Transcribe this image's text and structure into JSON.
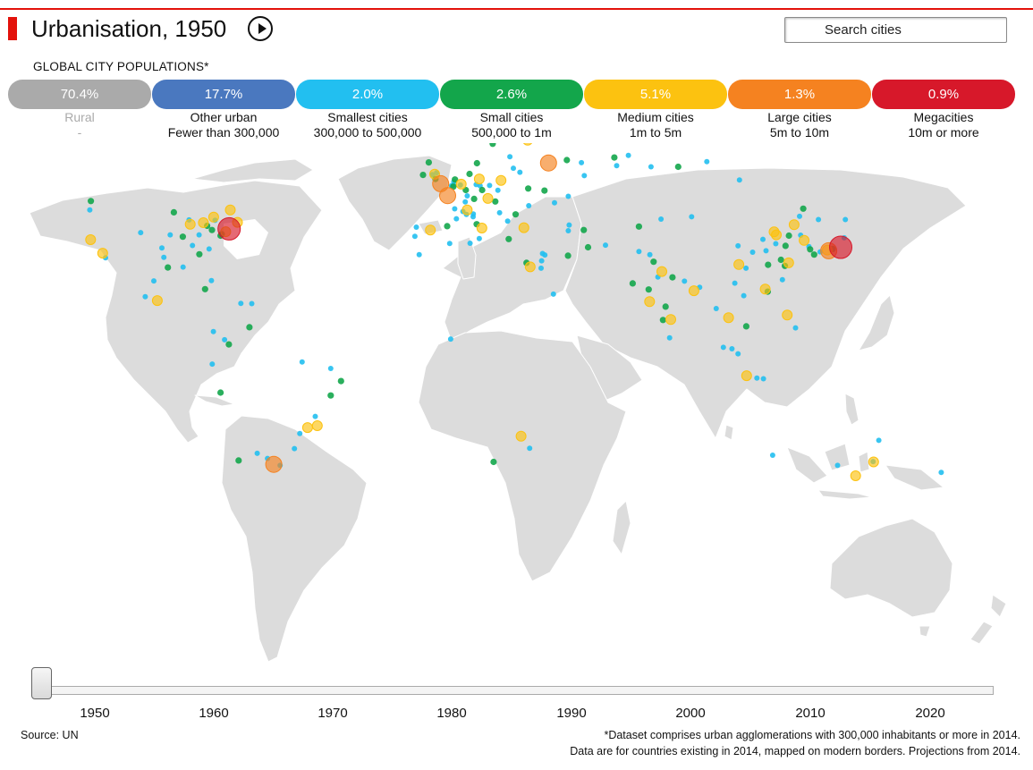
{
  "header": {
    "title": "Urbanisation, 1950",
    "search_placeholder": "Search cities"
  },
  "legend": {
    "subhead": "GLOBAL CITY POPULATIONS*",
    "categories": [
      {
        "share": "70.4%",
        "label": "Rural",
        "range": "-",
        "color": "#aaaaaa"
      },
      {
        "share": "17.7%",
        "label": "Other urban",
        "range": "Fewer than 300,000",
        "color": "#4a78bf"
      },
      {
        "share": "2.0%",
        "label": "Smallest cities",
        "range": "300,000 to 500,000",
        "color": "#22bff0"
      },
      {
        "share": "2.6%",
        "label": "Small cities",
        "range": "500,000 to 1m",
        "color": "#13a64b"
      },
      {
        "share": "5.1%",
        "label": "Medium cities",
        "range": "1m to 5m",
        "color": "#fcc210"
      },
      {
        "share": "1.3%",
        "label": "Large cities",
        "range": "5m to 10m",
        "color": "#f58220"
      },
      {
        "share": "0.9%",
        "label": "Megacities",
        "range": "10m or more",
        "color": "#d7182a"
      }
    ]
  },
  "timeline": {
    "ticks": [
      "1950",
      "1960",
      "1970",
      "1980",
      "1990",
      "2000",
      "2010",
      "2020"
    ],
    "current_year": 1950,
    "min_year": 1945,
    "max_year": 2026
  },
  "footer": {
    "source": "Source: UN",
    "note_line1": "*Dataset comprises urban agglomerations with 300,000 inhabitants or more in 2014.",
    "note_line2": "Data are for countries existing in 2014, mapped on modern borders. Projections from 2014."
  },
  "colors": {
    "land": "#dcdcdc",
    "accent": "#e3120b"
  },
  "cities": [
    {
      "lon": -74.0,
      "lat": 40.7,
      "cat": 6
    },
    {
      "lon": 139.7,
      "lat": 35.7,
      "cat": 6
    },
    {
      "lon": 135.5,
      "lat": 34.7,
      "cat": 5
    },
    {
      "lon": -0.1,
      "lat": 51.5,
      "cat": 5
    },
    {
      "lon": 2.35,
      "lat": 48.85,
      "cat": 5
    },
    {
      "lon": 37.6,
      "lat": 55.75,
      "cat": 5
    },
    {
      "lon": -58.4,
      "lat": -34.6,
      "cat": 5
    },
    {
      "lon": -87.6,
      "lat": 41.9,
      "cat": 4
    },
    {
      "lon": -118.2,
      "lat": 34.0,
      "cat": 4
    },
    {
      "lon": -75.2,
      "lat": 39.95,
      "cat": 4
    },
    {
      "lon": -83.0,
      "lat": 42.3,
      "cat": 4
    },
    {
      "lon": -71.1,
      "lat": 42.4,
      "cat": 4
    },
    {
      "lon": -99.1,
      "lat": 19.4,
      "cat": 4
    },
    {
      "lon": -122.4,
      "lat": 37.8,
      "cat": 4
    },
    {
      "lon": 13.4,
      "lat": 52.5,
      "cat": 4
    },
    {
      "lon": 30.3,
      "lat": 59.95,
      "cat": 4
    },
    {
      "lon": 121.5,
      "lat": 31.2,
      "cat": 4
    },
    {
      "lon": 116.4,
      "lat": 39.9,
      "cat": 4
    },
    {
      "lon": 88.4,
      "lat": 22.6,
      "cat": 4
    },
    {
      "lon": 72.9,
      "lat": 19.1,
      "cat": 4
    },
    {
      "lon": 31.2,
      "lat": 30.0,
      "cat": 4
    },
    {
      "lon": -43.2,
      "lat": -22.9,
      "cat": 4
    },
    {
      "lon": -46.6,
      "lat": -23.5,
      "cat": 4
    },
    {
      "lon": 151.2,
      "lat": -33.9,
      "cat": 4
    },
    {
      "lon": 144.9,
      "lat": -37.8,
      "cat": 4
    },
    {
      "lon": 9.2,
      "lat": 45.5,
      "cat": 4
    },
    {
      "lon": 7.1,
      "lat": 51.4,
      "cat": 4
    },
    {
      "lon": -2.2,
      "lat": 53.5,
      "cat": 4
    },
    {
      "lon": -3.7,
      "lat": 40.4,
      "cat": 4
    },
    {
      "lon": 14.3,
      "lat": 40.9,
      "cat": 4
    },
    {
      "lon": 126.9,
      "lat": 37.6,
      "cat": 4
    },
    {
      "lon": 135.0,
      "lat": 34.9,
      "cat": 4
    },
    {
      "lon": 123.4,
      "lat": 41.8,
      "cat": 4
    },
    {
      "lon": 100.5,
      "lat": 13.75,
      "cat": 4
    },
    {
      "lon": 106.8,
      "lat": -6.2,
      "cat": 4
    },
    {
      "lon": 121.0,
      "lat": 14.6,
      "cat": 4
    },
    {
      "lon": 77.2,
      "lat": 28.6,
      "cat": 4
    },
    {
      "lon": 80.3,
      "lat": 13.1,
      "cat": 4
    },
    {
      "lon": 29.0,
      "lat": 41.0,
      "cat": 4
    },
    {
      "lon": 28.0,
      "lat": -26.2,
      "cat": 4
    },
    {
      "lon": -79.4,
      "lat": 43.7,
      "cat": 4
    },
    {
      "lon": -73.6,
      "lat": 45.5,
      "cat": 4
    },
    {
      "lon": 104.1,
      "lat": 30.7,
      "cat": 4
    },
    {
      "lon": 113.3,
      "lat": 23.1,
      "cat": 4
    },
    {
      "lon": 117.2,
      "lat": 39.1,
      "cat": 4
    },
    {
      "lon": 16.4,
      "lat": 48.2,
      "cat": 4
    },
    {
      "lon": 21.0,
      "lat": 52.2,
      "cat": 4
    },
    {
      "lon": 4.9,
      "lat": 52.4,
      "cat": 3
    },
    {
      "lon": 12.5,
      "lat": 41.9,
      "cat": 3
    },
    {
      "lon": 19.0,
      "lat": 47.5,
      "cat": 3
    },
    {
      "lon": 26.1,
      "lat": 44.4,
      "cat": 3
    },
    {
      "lon": 30.5,
      "lat": 50.45,
      "cat": 3
    },
    {
      "lon": 49.9,
      "lat": 40.4,
      "cat": 3
    },
    {
      "lon": 60.6,
      "lat": 56.8,
      "cat": 3
    },
    {
      "lon": 82.9,
      "lat": 55.0,
      "cat": 3
    },
    {
      "lon": -90.2,
      "lat": 38.6,
      "cat": 3
    },
    {
      "lon": -84.4,
      "lat": 33.7,
      "cat": 3
    },
    {
      "lon": -95.4,
      "lat": 29.8,
      "cat": 3
    },
    {
      "lon": -122.3,
      "lat": 47.6,
      "cat": 3
    },
    {
      "lon": -77.0,
      "lat": 38.9,
      "cat": 3
    },
    {
      "lon": -81.7,
      "lat": 41.5,
      "cat": 3
    },
    {
      "lon": -80.0,
      "lat": 40.4,
      "cat": 3
    },
    {
      "lon": -76.6,
      "lat": 39.3,
      "cat": 3
    },
    {
      "lon": -93.3,
      "lat": 44.9,
      "cat": 3
    },
    {
      "lon": -82.4,
      "lat": 23.1,
      "cat": 3
    },
    {
      "lon": -70.7,
      "lat": -33.5,
      "cat": 3
    },
    {
      "lon": -77.0,
      "lat": -12.0,
      "cat": 3
    },
    {
      "lon": -74.1,
      "lat": 4.6,
      "cat": 3
    },
    {
      "lon": -66.9,
      "lat": 10.5,
      "cat": 3
    },
    {
      "lon": -34.9,
      "lat": -8.05,
      "cat": 3
    },
    {
      "lon": -38.5,
      "lat": -12.97,
      "cat": 3
    },
    {
      "lon": 18.4,
      "lat": -33.9,
      "cat": 3
    },
    {
      "lon": 67.0,
      "lat": 24.9,
      "cat": 3
    },
    {
      "lon": 74.3,
      "lat": 31.5,
      "cat": 3
    },
    {
      "lon": 78.5,
      "lat": 17.4,
      "cat": 3
    },
    {
      "lon": 77.6,
      "lat": 12.97,
      "cat": 3
    },
    {
      "lon": 80.9,
      "lat": 26.8,
      "cat": 3
    },
    {
      "lon": 72.6,
      "lat": 23.0,
      "cat": 3
    },
    {
      "lon": 114.3,
      "lat": 30.6,
      "cat": 3
    },
    {
      "lon": 118.8,
      "lat": 32.1,
      "cat": 3
    },
    {
      "lon": 120.2,
      "lat": 30.3,
      "cat": 3
    },
    {
      "lon": 126.6,
      "lat": 45.8,
      "cat": 3
    },
    {
      "lon": 121.6,
      "lat": 38.9,
      "cat": 3
    },
    {
      "lon": 120.4,
      "lat": 36.1,
      "cat": 3
    },
    {
      "lon": 114.2,
      "lat": 22.3,
      "cat": 3
    },
    {
      "lon": 106.7,
      "lat": 10.8,
      "cat": 3
    },
    {
      "lon": 129.0,
      "lat": 35.1,
      "cat": 3
    },
    {
      "lon": 130.4,
      "lat": 33.6,
      "cat": 3
    },
    {
      "lon": 136.9,
      "lat": 35.2,
      "cat": 3
    },
    {
      "lon": 44.4,
      "lat": 33.3,
      "cat": 3
    },
    {
      "lon": 51.4,
      "lat": 35.7,
      "cat": 3
    },
    {
      "lon": 29.9,
      "lat": 31.2,
      "cat": 3
    },
    {
      "lon": 8.7,
      "lat": 50.1,
      "cat": 3
    },
    {
      "lon": 11.6,
      "lat": 48.1,
      "cat": 3
    },
    {
      "lon": 10.0,
      "lat": 53.55,
      "cat": 3
    },
    {
      "lon": 4.35,
      "lat": 50.85,
      "cat": 3
    },
    {
      "lon": 12.6,
      "lat": 55.7,
      "cat": 3
    },
    {
      "lon": 18.1,
      "lat": 59.3,
      "cat": 3
    },
    {
      "lon": 2.2,
      "lat": 41.4,
      "cat": 3
    },
    {
      "lon": -4.25,
      "lat": 55.86,
      "cat": 3
    },
    {
      "lon": -1.9,
      "lat": 52.5,
      "cat": 3
    },
    {
      "lon": -6.26,
      "lat": 53.35,
      "cat": 3
    },
    {
      "lon": 14.4,
      "lat": 50.1,
      "cat": 3
    },
    {
      "lon": 23.7,
      "lat": 37.98,
      "cat": 3
    },
    {
      "lon": 36.2,
      "lat": 49.99,
      "cat": 3
    },
    {
      "lon": 44.0,
      "lat": 56.3,
      "cat": 3
    },
    {
      "lon": 69.2,
      "lat": 41.3,
      "cat": 3
    },
    {
      "lon": 151.0,
      "lat": -33.8,
      "cat": 2
    },
    {
      "lon": 153.0,
      "lat": -27.5,
      "cat": 2
    },
    {
      "lon": 138.6,
      "lat": -34.9,
      "cat": 2
    },
    {
      "lon": 115.9,
      "lat": -31.95,
      "cat": 2
    },
    {
      "lon": 174.8,
      "lat": -36.85,
      "cat": 2
    },
    {
      "lon": -97.5,
      "lat": 35.5,
      "cat": 2
    },
    {
      "lon": -90.1,
      "lat": 29.95,
      "cat": 2
    },
    {
      "lon": -86.8,
      "lat": 36.2,
      "cat": 2
    },
    {
      "lon": -84.5,
      "lat": 39.1,
      "cat": 2
    },
    {
      "lon": -81.0,
      "lat": 35.2,
      "cat": 2
    },
    {
      "lon": -88.0,
      "lat": 43.0,
      "cat": 2
    },
    {
      "lon": -94.6,
      "lat": 39.1,
      "cat": 2
    },
    {
      "lon": -104.9,
      "lat": 39.7,
      "cat": 2
    },
    {
      "lon": -117.2,
      "lat": 32.7,
      "cat": 2
    },
    {
      "lon": -122.7,
      "lat": 45.5,
      "cat": 2
    },
    {
      "lon": -96.8,
      "lat": 32.8,
      "cat": 2
    },
    {
      "lon": -80.2,
      "lat": 25.8,
      "cat": 2
    },
    {
      "lon": -78.9,
      "lat": 42.9,
      "cat": 2
    },
    {
      "lon": -103.3,
      "lat": 20.7,
      "cat": 2
    },
    {
      "lon": -100.3,
      "lat": 25.7,
      "cat": 2
    },
    {
      "lon": -66.1,
      "lat": 18.4,
      "cat": 2
    },
    {
      "lon": -69.9,
      "lat": 18.5,
      "cat": 2
    },
    {
      "lon": -79.5,
      "lat": 9.0,
      "cat": 2
    },
    {
      "lon": -75.6,
      "lat": 6.2,
      "cat": 2
    },
    {
      "lon": -79.9,
      "lat": -2.2,
      "cat": 2
    },
    {
      "lon": -64.2,
      "lat": -31.4,
      "cat": 2
    },
    {
      "lon": -60.6,
      "lat": -32.9,
      "cat": 2
    },
    {
      "lon": -56.2,
      "lat": -34.9,
      "cat": 2
    },
    {
      "lon": -51.2,
      "lat": -30.0,
      "cat": 2
    },
    {
      "lon": -43.9,
      "lat": -19.9,
      "cat": 2
    },
    {
      "lon": -49.3,
      "lat": -25.4,
      "cat": 2
    },
    {
      "lon": -48.5,
      "lat": -1.45,
      "cat": 2
    },
    {
      "lon": -38.5,
      "lat": -3.7,
      "cat": 2
    },
    {
      "lon": 31.0,
      "lat": -29.9,
      "cat": 2
    },
    {
      "lon": 3.4,
      "lat": 6.45,
      "cat": 2
    },
    {
      "lon": -7.6,
      "lat": 33.6,
      "cat": 2
    },
    {
      "lon": 3.05,
      "lat": 36.75,
      "cat": 2
    },
    {
      "lon": 10.2,
      "lat": 36.8,
      "cat": 2
    },
    {
      "lon": 39.3,
      "lat": 21.5,
      "cat": 2
    },
    {
      "lon": 35.2,
      "lat": 31.8,
      "cat": 2
    },
    {
      "lon": 36.3,
      "lat": 33.5,
      "cat": 2
    },
    {
      "lon": 35.5,
      "lat": 33.9,
      "cat": 2
    },
    {
      "lon": 35.0,
      "lat": 29.6,
      "cat": 2
    },
    {
      "lon": 57.5,
      "lat": 36.3,
      "cat": 2
    },
    {
      "lon": 69.2,
      "lat": 34.5,
      "cat": 2
    },
    {
      "lon": 73.0,
      "lat": 33.6,
      "cat": 2
    },
    {
      "lon": 75.8,
      "lat": 26.9,
      "cat": 2
    },
    {
      "lon": 85.1,
      "lat": 25.6,
      "cat": 2
    },
    {
      "lon": 90.4,
      "lat": 23.7,
      "cat": 2
    },
    {
      "lon": 96.2,
      "lat": 16.8,
      "cat": 2
    },
    {
      "lon": 79.9,
      "lat": 6.9,
      "cat": 2
    },
    {
      "lon": 105.8,
      "lat": 21.0,
      "cat": 2
    },
    {
      "lon": 110.4,
      "lat": -7.0,
      "cat": 2
    },
    {
      "lon": 112.7,
      "lat": -7.25,
      "cat": 2
    },
    {
      "lon": 98.7,
      "lat": 3.6,
      "cat": 2
    },
    {
      "lon": 103.8,
      "lat": 1.35,
      "cat": 2
    },
    {
      "lon": 101.7,
      "lat": 3.1,
      "cat": 2
    },
    {
      "lon": 123.9,
      "lat": 10.3,
      "cat": 2
    },
    {
      "lon": 125.7,
      "lat": 39.0,
      "cat": 2
    },
    {
      "lon": 141.3,
      "lat": 43.1,
      "cat": 2
    },
    {
      "lon": 132.5,
      "lat": 34.4,
      "cat": 2
    },
    {
      "lon": 140.9,
      "lat": 38.3,
      "cat": 2
    },
    {
      "lon": 128.6,
      "lat": 35.9,
      "cat": 2
    },
    {
      "lon": 113.6,
      "lat": 34.7,
      "cat": 2
    },
    {
      "lon": 108.9,
      "lat": 34.3,
      "cat": 2
    },
    {
      "lon": 112.5,
      "lat": 37.9,
      "cat": 2
    },
    {
      "lon": 117.0,
      "lat": 36.7,
      "cat": 2
    },
    {
      "lon": 119.3,
      "lat": 26.1,
      "cat": 2
    },
    {
      "lon": 106.6,
      "lat": 29.6,
      "cat": 2
    },
    {
      "lon": 102.7,
      "lat": 25.0,
      "cat": 2
    },
    {
      "lon": 125.3,
      "lat": 43.9,
      "cat": 2
    },
    {
      "lon": 87.6,
      "lat": 43.8,
      "cat": 2
    },
    {
      "lon": 103.8,
      "lat": 36.1,
      "cat": 2
    },
    {
      "lon": 61.4,
      "lat": 55.2,
      "cat": 2
    },
    {
      "lon": 65.5,
      "lat": 57.2,
      "cat": 2
    },
    {
      "lon": 73.4,
      "lat": 55.0,
      "cat": 2
    },
    {
      "lon": 92.9,
      "lat": 56.0,
      "cat": 2
    },
    {
      "lon": 104.3,
      "lat": 52.3,
      "cat": 2
    },
    {
      "lon": 131.9,
      "lat": 43.1,
      "cat": 2
    },
    {
      "lon": 50.1,
      "lat": 53.2,
      "cat": 2
    },
    {
      "lon": 49.1,
      "lat": 55.8,
      "cat": 2
    },
    {
      "lon": 44.5,
      "lat": 48.7,
      "cat": 2
    },
    {
      "lon": 39.7,
      "lat": 47.2,
      "cat": 2
    },
    {
      "lon": 30.7,
      "lat": 46.5,
      "cat": 2
    },
    {
      "lon": 27.6,
      "lat": 53.9,
      "cat": 2
    },
    {
      "lon": 24.1,
      "lat": 56.95,
      "cat": 2
    },
    {
      "lon": 25.3,
      "lat": 54.7,
      "cat": 2
    },
    {
      "lon": 44.8,
      "lat": 41.7,
      "cat": 2
    },
    {
      "lon": 44.5,
      "lat": 40.2,
      "cat": 2
    },
    {
      "lon": 76.9,
      "lat": 43.2,
      "cat": 2
    },
    {
      "lon": 24.9,
      "lat": 60.2,
      "cat": 2
    },
    {
      "lon": 10.75,
      "lat": 59.9,
      "cat": 2
    },
    {
      "lon": 17.0,
      "lat": 51.1,
      "cat": 2
    },
    {
      "lon": 19.9,
      "lat": 50.05,
      "cat": 2
    },
    {
      "lon": 20.5,
      "lat": 44.8,
      "cat": 2
    },
    {
      "lon": 23.3,
      "lat": 42.7,
      "cat": 2
    },
    {
      "lon": 7.7,
      "lat": 45.1,
      "cat": 2
    },
    {
      "lon": 5.4,
      "lat": 43.3,
      "cat": 2
    },
    {
      "lon": 4.8,
      "lat": 45.75,
      "cat": 2
    },
    {
      "lon": -9.1,
      "lat": 38.7,
      "cat": 2
    },
    {
      "lon": -8.6,
      "lat": 41.15,
      "cat": 2
    },
    {
      "lon": -3.0,
      "lat": 53.4,
      "cat": 2
    },
    {
      "lon": -1.5,
      "lat": 53.8,
      "cat": 2
    },
    {
      "lon": 6.8,
      "lat": 51.2,
      "cat": 2
    },
    {
      "lon": 13.7,
      "lat": 51.05,
      "cat": 2
    },
    {
      "lon": 9.2,
      "lat": 48.8,
      "cat": 2
    },
    {
      "lon": 8.5,
      "lat": 47.4,
      "cat": 2
    },
    {
      "lon": 12.3,
      "lat": 51.3,
      "cat": 2
    },
    {
      "lon": 4.5,
      "lat": 51.9,
      "cat": 2
    },
    {
      "lon": 3.7,
      "lat": 51.05,
      "cat": 2
    },
    {
      "lon": 4.4,
      "lat": 51.2,
      "cat": 2
    },
    {
      "lon": 11.3,
      "lat": 44.5,
      "cat": 2
    },
    {
      "lon": 13.4,
      "lat": 38.1,
      "cat": 2
    },
    {
      "lon": 11.25,
      "lat": 43.8,
      "cat": 2
    },
    {
      "lon": 8.9,
      "lat": 44.4,
      "cat": 2
    }
  ]
}
